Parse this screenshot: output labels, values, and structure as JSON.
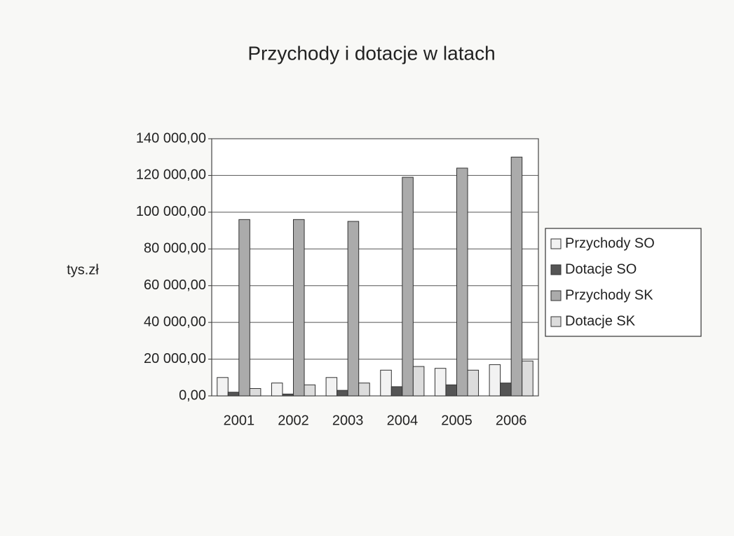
{
  "chart_data": {
    "type": "bar",
    "title": "Przychody i dotacje w latach",
    "y_label": "tys.zł",
    "categories": [
      "2001",
      "2002",
      "2003",
      "2004",
      "2005",
      "2006"
    ],
    "series": [
      {
        "name": "Przychody SO",
        "color": "#f2f2f2",
        "values": [
          10000,
          7000,
          10000,
          14000,
          15000,
          17000
        ]
      },
      {
        "name": "Dotacje SO",
        "color": "#555555",
        "values": [
          2000,
          1000,
          3000,
          5000,
          6000,
          7000
        ]
      },
      {
        "name": "Przychody SK",
        "color": "#ababab",
        "values": [
          96000,
          96000,
          95000,
          119000,
          124000,
          130000
        ]
      },
      {
        "name": "Dotacje SK",
        "color": "#dcdcdc",
        "values": [
          4000,
          6000,
          7000,
          16000,
          14000,
          19000
        ]
      }
    ],
    "ylim": [
      0,
      140000
    ],
    "yticks": [
      {
        "value": 0,
        "label": "0,00"
      },
      {
        "value": 20000,
        "label": "20 000,00"
      },
      {
        "value": 40000,
        "label": "40 000,00"
      },
      {
        "value": 60000,
        "label": "60 000,00"
      },
      {
        "value": 80000,
        "label": "80 000,00"
      },
      {
        "value": 100000,
        "label": "100 000,00"
      },
      {
        "value": 120000,
        "label": "120 000,00"
      },
      {
        "value": 140000,
        "label": "140 000,00"
      }
    ],
    "grid": true
  }
}
